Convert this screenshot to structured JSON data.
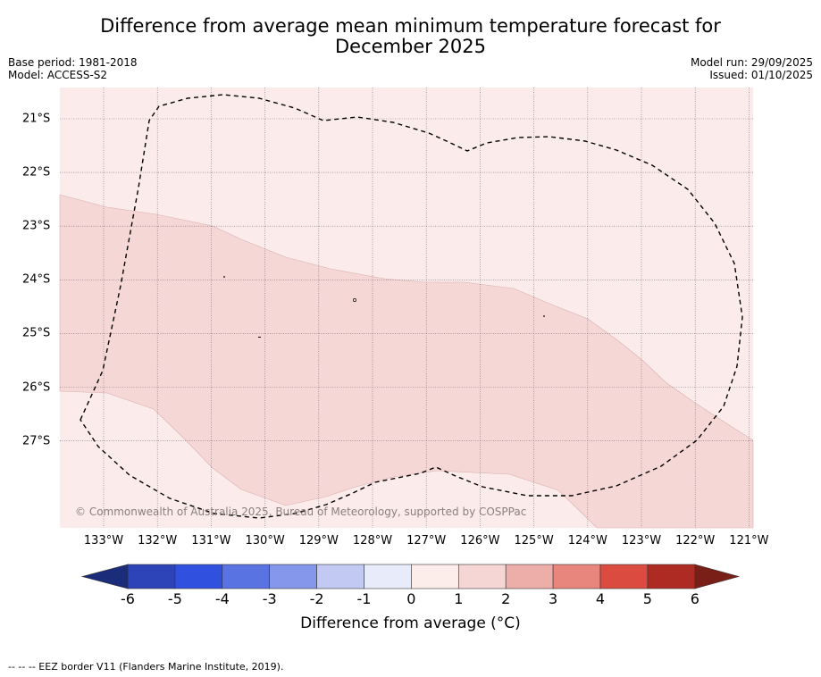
{
  "title": {
    "line1": "Difference from average mean minimum temperature forecast for",
    "line2": "December 2025"
  },
  "meta_left": {
    "base_period": "Base period: 1981-2018",
    "model": "Model: ACCESS-S2"
  },
  "meta_right": {
    "model_run": "Model run: 29/09/2025",
    "issued": "Issued: 01/10/2025"
  },
  "map": {
    "longitude_labels": [
      "133°W",
      "132°W",
      "131°W",
      "130°W",
      "129°W",
      "128°W",
      "127°W",
      "126°W",
      "125°W",
      "124°W",
      "123°W",
      "122°W",
      "121°W"
    ],
    "latitude_labels": [
      "21°S",
      "22°S",
      "23°S",
      "24°S",
      "25°S",
      "26°S",
      "27°S"
    ],
    "copyright": "© Commonwealth of Australia 2025, Bureau of Meteorology, supported by COSPPac",
    "colors": {
      "anomaly_0_1": "#fbeceb",
      "anomaly_1_2": "#f5d7d6",
      "gridline": "#7a6a7a",
      "eez": "#000000"
    }
  },
  "colorbar": {
    "tick_labels": [
      "-6",
      "-5",
      "-4",
      "-3",
      "-2",
      "-1",
      "0",
      "1",
      "2",
      "3",
      "4",
      "5",
      "6"
    ],
    "colors": [
      "#233b9c",
      "#2c44b8",
      "#3050e0",
      "#5a73e2",
      "#8597ea",
      "#c2c9f2",
      "#e8ebfa",
      "#fcecea",
      "#f5d6d5",
      "#edaeaa",
      "#e8857c",
      "#db4b3f",
      "#ad2b23"
    ],
    "end_colors": {
      "low": "#1a2c7a",
      "high": "#7a1e18"
    },
    "label": "Difference from average (°C)"
  },
  "footer": "--  --  -- EEZ border V11 (Flanders Marine Institute, 2019)."
}
